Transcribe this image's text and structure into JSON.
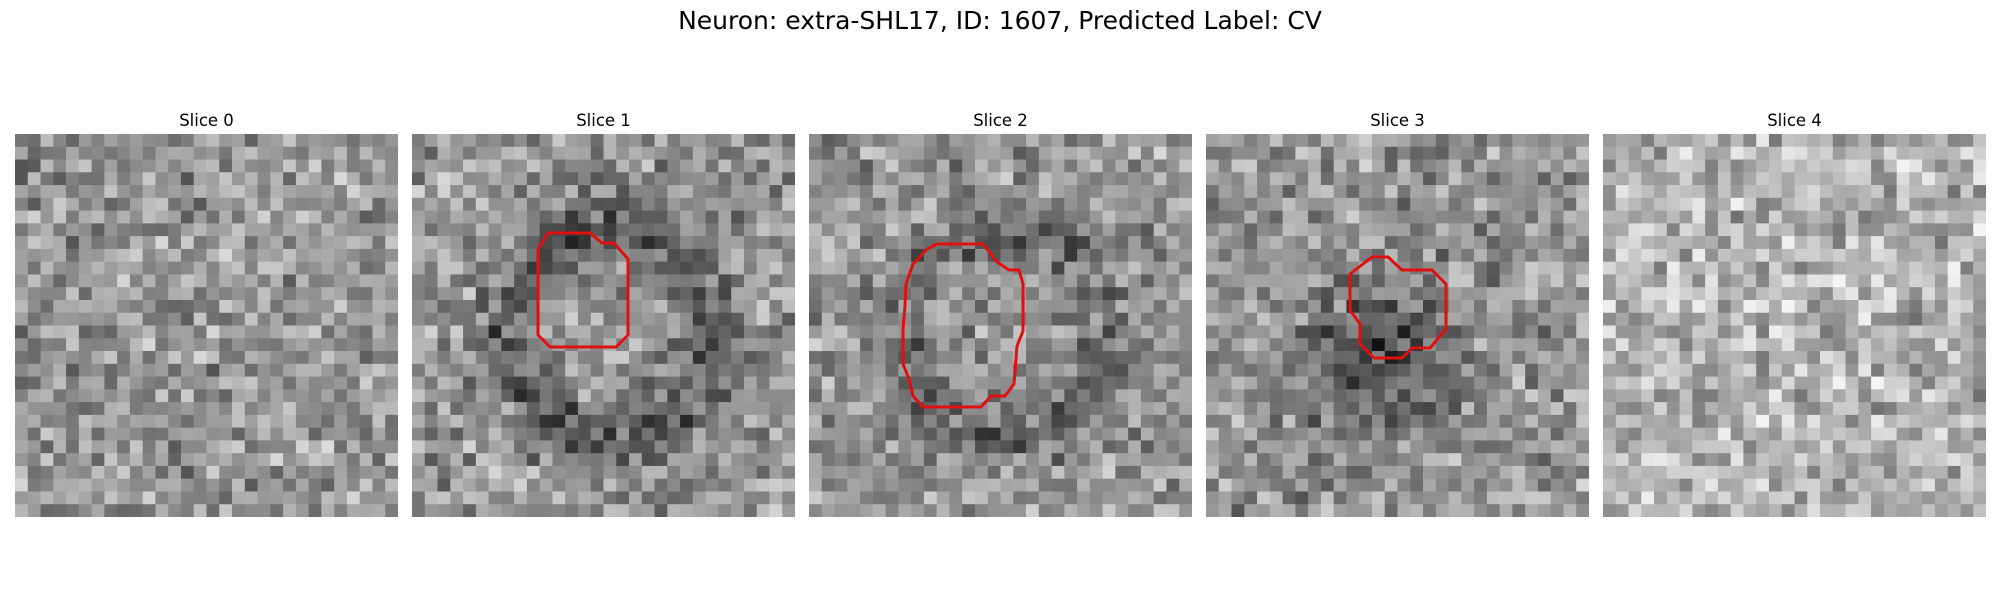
{
  "figure": {
    "title": "Neuron: extra-SHL17, ID: 1607, Predicted Label: CV"
  },
  "colors": {
    "background": "#ffffff",
    "roi_outline": "#e01010",
    "colormap": "grayscale"
  },
  "panels": [
    {
      "title": "Slice 0",
      "has_roi": false,
      "appearance": "uniform noisy grey texture, no structure",
      "seed": 11,
      "ring": 0.0,
      "center_dark": 0.0,
      "bright": 0.0
    },
    {
      "title": "Slice 1",
      "has_roi": true,
      "appearance": "dark ring around a lighter centre, outlined in red",
      "seed": 23,
      "ring": 1.0,
      "center_dark": 0.0,
      "bright": 0.0
    },
    {
      "title": "Slice 2",
      "has_roi": true,
      "appearance": "larger faint ring, outlined in red",
      "seed": 37,
      "ring": 0.7,
      "center_dark": 0.0,
      "bright": 0.0
    },
    {
      "title": "Slice 3",
      "has_roi": true,
      "appearance": "dark blob, smaller red outline",
      "seed": 51,
      "ring": 0.0,
      "center_dark": 1.0,
      "bright": 0.0
    },
    {
      "title": "Slice 4",
      "has_roi": false,
      "appearance": "light noisy texture, no structure",
      "seed": 67,
      "ring": 0.0,
      "center_dark": 0.0,
      "bright": 1.0
    }
  ]
}
